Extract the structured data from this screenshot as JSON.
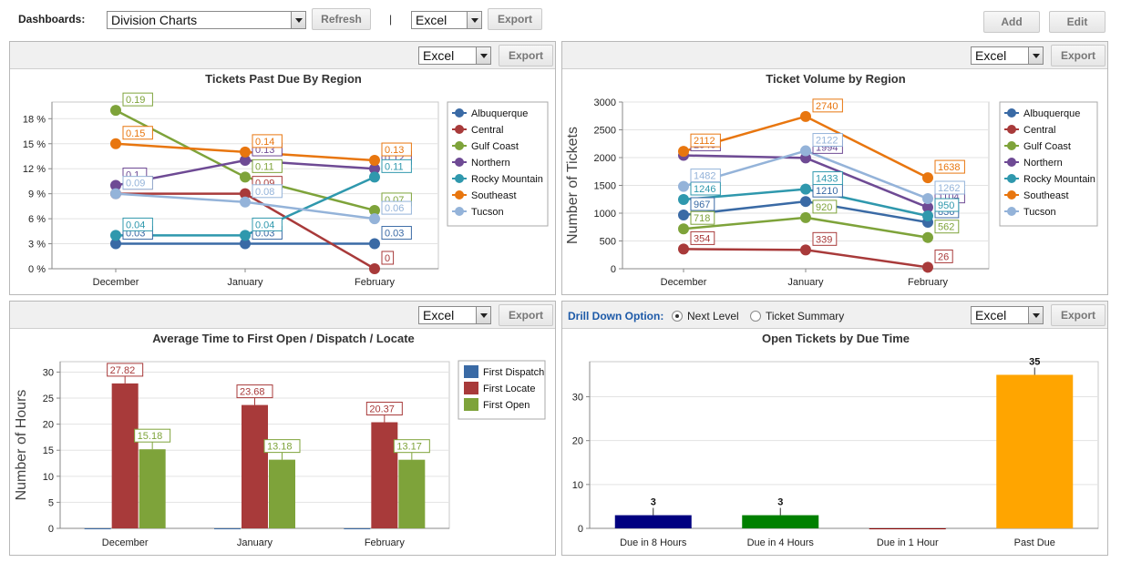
{
  "toolbar": {
    "dashboards_label": "Dashboards:",
    "dashboard_select": "Division Charts",
    "refresh_label": "Refresh",
    "separator": "|",
    "format_select": "Excel",
    "export_label": "Export",
    "add_label": "Add",
    "edit_label": "Edit"
  },
  "panels": {
    "p1": {
      "format": "Excel",
      "export": "Export"
    },
    "p2": {
      "format": "Excel",
      "export": "Export"
    },
    "p3": {
      "format": "Excel",
      "export": "Export"
    },
    "p4": {
      "format": "Excel",
      "export": "Export",
      "drill_label": "Drill Down Option:",
      "radio_next": "Next Level",
      "radio_summary": "Ticket Summary"
    }
  },
  "chart_data": [
    {
      "id": "past-due",
      "type": "line",
      "title": "Tickets Past Due By Region",
      "categories": [
        "December",
        "January",
        "February"
      ],
      "ylabel": "",
      "ylim": [
        0,
        0.2
      ],
      "yticks": [
        0,
        0.03,
        0.06,
        0.09,
        0.12,
        0.15,
        0.18
      ],
      "ytick_labels": [
        "0 %",
        "3 %",
        "6 %",
        "9 %",
        "12 %",
        "15 %",
        "18 %"
      ],
      "series": [
        {
          "name": "Albuquerque",
          "color": "#3a6aa5",
          "values": [
            0.03,
            0.03,
            0.03
          ],
          "labels": [
            "0.03",
            "0.03",
            "0.03"
          ]
        },
        {
          "name": "Central",
          "color": "#a83a3a",
          "values": [
            0.09,
            0.09,
            0.0
          ],
          "labels": [
            "0.09",
            "0.09",
            "0"
          ]
        },
        {
          "name": "Gulf Coast",
          "color": "#7ea33a",
          "values": [
            0.19,
            0.11,
            0.07
          ],
          "labels": [
            "0.19",
            "0.11",
            "0.07"
          ]
        },
        {
          "name": "Northern",
          "color": "#6e4a94",
          "values": [
            0.1,
            0.13,
            0.12
          ],
          "labels": [
            "0.1",
            "0.13",
            "0.12"
          ]
        },
        {
          "name": "Rocky Mountain",
          "color": "#2f98ad",
          "values": [
            0.04,
            0.04,
            0.11
          ],
          "labels": [
            "0.04",
            "0.04",
            "0.11"
          ]
        },
        {
          "name": "Southeast",
          "color": "#e8760f",
          "values": [
            0.15,
            0.14,
            0.13
          ],
          "labels": [
            "0.15",
            "0.14",
            "0.13"
          ]
        },
        {
          "name": "Tucson",
          "color": "#94b3d9",
          "values": [
            0.09,
            0.08,
            0.06
          ],
          "labels": [
            "0.09",
            "0.08",
            "0.06"
          ]
        }
      ]
    },
    {
      "id": "volume",
      "type": "line",
      "title": "Ticket Volume by Region",
      "categories": [
        "December",
        "January",
        "February"
      ],
      "ylabel": "Number of Tickets",
      "ylim": [
        0,
        3000
      ],
      "yticks": [
        0,
        500,
        1000,
        1500,
        2000,
        2500,
        3000
      ],
      "ytick_labels": [
        "0",
        "500",
        "1000",
        "1500",
        "2000",
        "2500",
        "3000"
      ],
      "series": [
        {
          "name": "Albuquerque",
          "color": "#3a6aa5",
          "values": [
            967,
            1210,
            836
          ],
          "labels": [
            "967",
            "1210",
            "836"
          ]
        },
        {
          "name": "Central",
          "color": "#a83a3a",
          "values": [
            354,
            339,
            26
          ],
          "labels": [
            "354",
            "339",
            "26"
          ]
        },
        {
          "name": "Gulf Coast",
          "color": "#7ea33a",
          "values": [
            718,
            920,
            562
          ],
          "labels": [
            "718",
            "920",
            "562"
          ]
        },
        {
          "name": "Northern",
          "color": "#6e4a94",
          "values": [
            2040,
            1994,
            1104
          ],
          "labels": [
            "2040",
            "1994",
            "1104"
          ]
        },
        {
          "name": "Rocky Mountain",
          "color": "#2f98ad",
          "values": [
            1246,
            1433,
            950
          ],
          "labels": [
            "1246",
            "1433",
            "950"
          ]
        },
        {
          "name": "Southeast",
          "color": "#e8760f",
          "values": [
            2112,
            2740,
            1638
          ],
          "labels": [
            "2112",
            "2740",
            "1638"
          ]
        },
        {
          "name": "Tucson",
          "color": "#94b3d9",
          "values": [
            1482,
            2122,
            1262
          ],
          "labels": [
            "1482",
            "2122",
            "1262"
          ]
        }
      ]
    },
    {
      "id": "avg-time",
      "type": "bar",
      "title": "Average Time to First Open / Dispatch / Locate",
      "categories": [
        "December",
        "January",
        "February"
      ],
      "ylabel": "Number of Hours",
      "ylim": [
        0,
        32
      ],
      "yticks": [
        0,
        5,
        10,
        15,
        20,
        25,
        30
      ],
      "ytick_labels": [
        "0",
        "5",
        "10",
        "15",
        "20",
        "25",
        "30"
      ],
      "series": [
        {
          "name": "First Dispatch",
          "color": "#3a6aa5",
          "values": [
            0,
            0,
            0
          ],
          "labels": [
            "",
            "",
            ""
          ]
        },
        {
          "name": "First Locate",
          "color": "#a83a3a",
          "values": [
            27.82,
            23.68,
            20.37
          ],
          "labels": [
            "27.82",
            "23.68",
            "20.37"
          ]
        },
        {
          "name": "First Open",
          "color": "#7ea33a",
          "values": [
            15.18,
            13.18,
            13.17
          ],
          "labels": [
            "15.18",
            "13.18",
            "13.17"
          ]
        }
      ]
    },
    {
      "id": "due-time",
      "type": "bar",
      "title": "Open Tickets by Due Time",
      "categories": [
        "Due in 8 Hours",
        "Due in 4 Hours",
        "Due in 1 Hour",
        "Past Due"
      ],
      "values": [
        3,
        3,
        0,
        35
      ],
      "labels": [
        "3",
        "3",
        "",
        "35"
      ],
      "colors": [
        "#000080",
        "#008000",
        "#8b0000",
        "#ffa500"
      ],
      "ylabel": "",
      "ylim": [
        0,
        38
      ],
      "yticks": [
        0,
        10,
        20,
        30
      ],
      "ytick_labels": [
        "0",
        "10",
        "20",
        "30"
      ]
    }
  ]
}
